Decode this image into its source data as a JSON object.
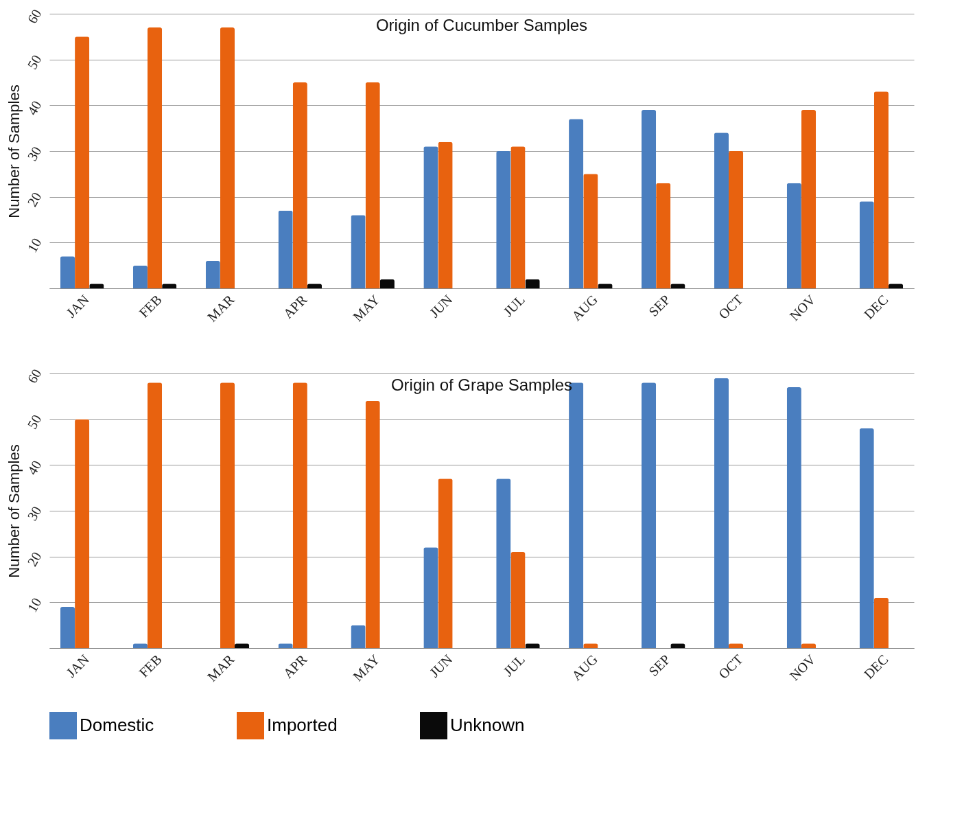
{
  "chart_data": [
    {
      "type": "bar",
      "title": "Origin of Cucumber Samples",
      "ylabel": "Number of Samples",
      "categories": [
        "JAN",
        "FEB",
        "MAR",
        "APR",
        "MAY",
        "JUN",
        "JUL",
        "AUG",
        "SEP",
        "OCT",
        "NOV",
        "DEC"
      ],
      "series": [
        {
          "name": "Domestic",
          "color": "#4a7ebf",
          "values": [
            7,
            5,
            6,
            17,
            16,
            31,
            30,
            37,
            39,
            34,
            23,
            19
          ]
        },
        {
          "name": "Imported",
          "color": "#e8620f",
          "values": [
            55,
            57,
            57,
            45,
            45,
            32,
            31,
            25,
            23,
            30,
            39,
            43
          ]
        },
        {
          "name": "Unknown",
          "color": "#0a0a0a",
          "values": [
            1,
            1,
            0,
            1,
            2,
            0,
            2,
            1,
            1,
            0,
            0,
            1
          ]
        }
      ],
      "ylim": [
        0,
        60
      ],
      "yticks": [
        {
          "value": 0,
          "label": null
        },
        10,
        20,
        30,
        40,
        50,
        60
      ],
      "grid": "y",
      "legend": "bottom"
    },
    {
      "type": "bar",
      "title": "Origin of Grape Samples",
      "ylabel": "Number of Samples",
      "categories": [
        "JAN",
        "FEB",
        "MAR",
        "APR",
        "MAY",
        "JUN",
        "JUL",
        "AUG",
        "SEP",
        "OCT",
        "NOV",
        "DEC"
      ],
      "series": [
        {
          "name": "Domestic",
          "color": "#4a7ebf",
          "values": [
            9,
            1,
            0,
            1,
            5,
            22,
            37,
            58,
            58,
            59,
            57,
            48
          ]
        },
        {
          "name": "Imported",
          "color": "#e8620f",
          "values": [
            50,
            58,
            58,
            58,
            54,
            37,
            21,
            1,
            0,
            1,
            1,
            11
          ]
        },
        {
          "name": "Unknown",
          "color": "#0a0a0a",
          "values": [
            0,
            0,
            1,
            0,
            0,
            0,
            1,
            0,
            1,
            0,
            0,
            0
          ]
        }
      ],
      "ylim": [
        0,
        60
      ],
      "yticks": [
        {
          "value": 0,
          "label": null
        },
        10,
        20,
        30,
        40,
        50,
        60
      ],
      "grid": "y",
      "legend": "bottom"
    }
  ]
}
